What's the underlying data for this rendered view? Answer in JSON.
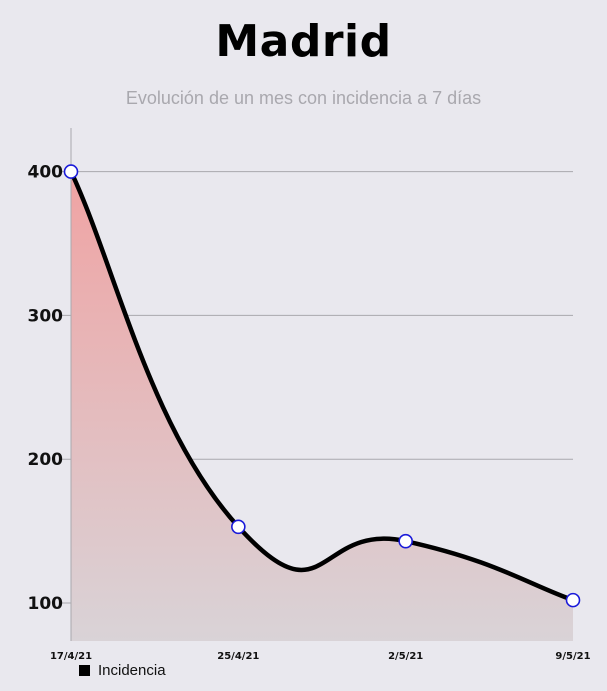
{
  "title": "Madrid",
  "subtitle": "Evolución de un mes con incidencia a 7 días",
  "chart_data": {
    "type": "area",
    "categories": [
      "17/4/21",
      "25/4/21",
      "2/5/21",
      "9/5/21"
    ],
    "series": [
      {
        "name": "Incidencia",
        "values": [
          400,
          153,
          143,
          102
        ]
      }
    ],
    "y_ticks": [
      100,
      200,
      300,
      400
    ],
    "ylim": [
      75,
      430
    ],
    "grid": true,
    "legend": "bottom-left",
    "colors": {
      "line": "#000000",
      "marker_stroke": "#1a1ad9",
      "marker_fill": "#ffffff",
      "fill_top": "#f0a3a3",
      "fill_bottom": "#d9d3d7",
      "grid": "#a9a8ad"
    }
  }
}
